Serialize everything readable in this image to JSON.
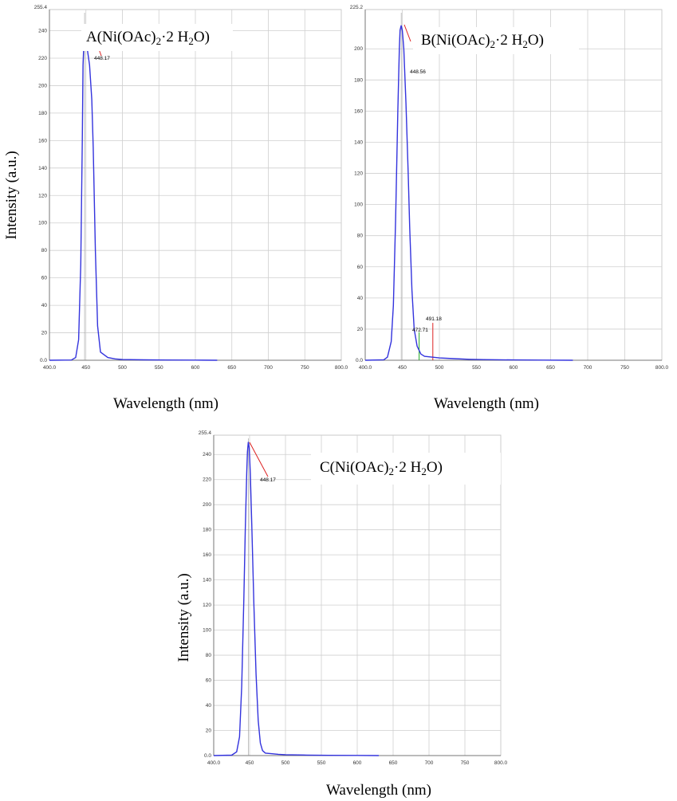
{
  "chart_data": [
    {
      "type": "line",
      "panel_label": {
        "prefix": "A(Ni(OAc)",
        "sub": "2",
        "mid": "·2 H",
        "sub2": "2",
        "suffix": "O)"
      },
      "xlabel": "Wavelength (nm)",
      "ylabel": "Intensity (a.u.)",
      "xlim": [
        400.0,
        800.0
      ],
      "ylim": [
        0.0,
        255.4
      ],
      "x_ticks": [
        "400.0",
        "450",
        "500",
        "550",
        "600",
        "650",
        "700",
        "750",
        "800.0"
      ],
      "y_ticks": [
        "0.0",
        "20",
        "40",
        "60",
        "80",
        "100",
        "120",
        "140",
        "160",
        "180",
        "200",
        "220",
        "240"
      ],
      "y_max_label": "255.4",
      "grid": true,
      "line_color": "#3333dd",
      "series": [
        {
          "x": [
            400,
            430,
            436,
            440,
            443,
            445,
            446,
            447,
            448.2,
            449,
            450,
            452,
            455,
            458,
            460,
            463,
            466,
            470,
            480,
            490,
            500,
            530,
            560,
            600,
            630
          ],
          "y": [
            0,
            0.2,
            2,
            15,
            70,
            160,
            215,
            228,
            228,
            228,
            228,
            226,
            215,
            190,
            155,
            80,
            25,
            6,
            2,
            1,
            0.5,
            0.3,
            0.2,
            0.1,
            0
          ]
        }
      ],
      "peak_markers": [
        {
          "x": 448.17,
          "label": "448.17",
          "color": "#dd2222"
        }
      ]
    },
    {
      "type": "line",
      "panel_label": {
        "prefix": "B(Ni(OAc)",
        "sub": "2",
        "mid": "·2 H",
        "sub2": "2",
        "suffix": "O)"
      },
      "xlabel": "Wavelength (nm)",
      "ylabel": "",
      "xlim": [
        400.0,
        800.0
      ],
      "ylim": [
        0.0,
        225.2
      ],
      "x_ticks": [
        "400.0",
        "450",
        "500",
        "550",
        "600",
        "650",
        "700",
        "750",
        "800.0"
      ],
      "y_ticks": [
        "0.0",
        "20",
        "40",
        "60",
        "80",
        "100",
        "120",
        "140",
        "160",
        "180",
        "200"
      ],
      "y_max_label": "225.2",
      "grid": true,
      "line_color": "#3333dd",
      "series": [
        {
          "x": [
            400,
            425,
            430,
            435,
            438,
            441,
            444,
            446,
            447,
            448.5,
            450,
            452,
            455,
            458,
            460,
            463,
            466,
            470,
            475,
            480,
            490,
            500,
            520,
            540,
            560,
            600,
            640,
            680
          ],
          "y": [
            0,
            0.3,
            2,
            12,
            35,
            90,
            160,
            200,
            212,
            215,
            212,
            200,
            165,
            120,
            85,
            45,
            20,
            9,
            4,
            2.5,
            2,
            1.5,
            1,
            0.6,
            0.4,
            0.2,
            0.1,
            0
          ]
        }
      ],
      "peak_markers": [
        {
          "x": 448.56,
          "label": "448.56",
          "color": "#dd2222"
        },
        {
          "x": 472.71,
          "label": "472.71",
          "color": "#22aa22"
        },
        {
          "x": 491.18,
          "label": "491.18",
          "color": "#dd2222"
        }
      ]
    },
    {
      "type": "line",
      "panel_label": {
        "prefix": "C(Ni(OAc)",
        "sub": "2",
        "mid": "·2 H",
        "sub2": "2",
        "suffix": "O)"
      },
      "xlabel": "Wavelength (nm)",
      "ylabel": "Intensity (a.u.)",
      "xlim": [
        400.0,
        800.0
      ],
      "ylim": [
        0.0,
        255.4
      ],
      "x_ticks": [
        "400.0",
        "450",
        "500",
        "550",
        "600",
        "650",
        "700",
        "750",
        "800.0"
      ],
      "y_ticks": [
        "0.0",
        "20",
        "40",
        "60",
        "80",
        "100",
        "120",
        "140",
        "160",
        "180",
        "200",
        "220",
        "240"
      ],
      "y_max_label": "255.4",
      "grid": true,
      "line_color": "#3333dd",
      "series": [
        {
          "x": [
            400,
            425,
            432,
            436,
            439,
            442,
            444,
            446,
            447,
            448.2,
            449.5,
            451,
            453,
            456,
            459,
            462,
            465,
            468,
            472,
            480,
            490,
            500,
            530,
            560,
            600,
            630
          ],
          "y": [
            0,
            0.3,
            3,
            15,
            55,
            125,
            180,
            225,
            242,
            250,
            245,
            225,
            185,
            120,
            65,
            28,
            10,
            4,
            2,
            1.5,
            1,
            0.7,
            0.4,
            0.2,
            0.1,
            0
          ]
        }
      ],
      "peak_markers": [
        {
          "x": 448.17,
          "label": "448.17",
          "color": "#dd2222"
        }
      ]
    }
  ]
}
